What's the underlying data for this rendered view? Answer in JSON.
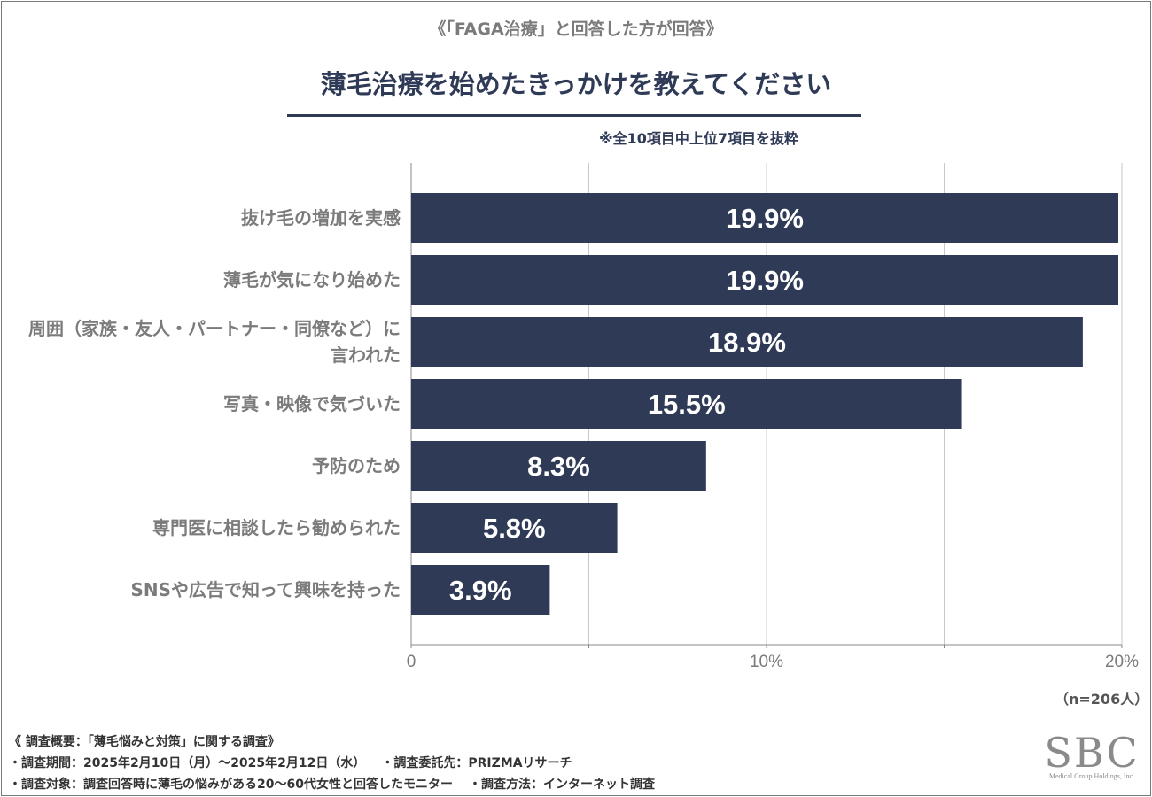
{
  "header": {
    "subtitle": "《「FAGA治療」と回答した方が回答》",
    "title": "薄毛治療を始めたきっかけを教えてください",
    "note": "※全10項目中上位7項目を抜粋"
  },
  "chart_data": {
    "type": "bar",
    "orientation": "horizontal",
    "categories": [
      "抜け毛の増加を実感",
      "薄毛が気になり始めた",
      "周囲（家族・友人・パートナー・同僚など）に言われた",
      "写真・映像で気づいた",
      "予防のため",
      "専門医に相談したら勧められた",
      "SNSや広告で知って興味を持った"
    ],
    "category_lines": [
      [
        "抜け毛の増加を実感"
      ],
      [
        "薄毛が気になり始めた"
      ],
      [
        "周囲（家族・友人・パートナー・同僚など）に",
        "言われた"
      ],
      [
        "写真・映像で気づいた"
      ],
      [
        "予防のため"
      ],
      [
        "専門医に相談したら勧められた"
      ],
      [
        "SNSや広告で知って興味を持った"
      ]
    ],
    "values": [
      19.9,
      19.9,
      18.9,
      15.5,
      8.3,
      5.8,
      3.9
    ],
    "value_labels": [
      "19.9%",
      "19.9%",
      "18.9%",
      "15.5%",
      "8.3%",
      "5.8%",
      "3.9%"
    ],
    "xlim": [
      0,
      20
    ],
    "ticks": [
      0,
      5,
      10,
      15,
      20
    ],
    "tick_labels": [
      "0",
      "",
      "10%",
      "",
      "20%"
    ],
    "bar_color": "#2f3a57",
    "grid_color": "#c8c8c8",
    "grid": true
  },
  "sample_size": "（n=206人）",
  "footer": {
    "survey_overview": "《 調査概要：「薄毛悩みと対策」に関する調査》",
    "period": "・調査期間：2025年2月10日（月）～2025年2月12日（水）",
    "contractor": "・調査委託先：PRIZMAリサーチ",
    "target": "・調査対象：調査回答時に薄毛の悩みがある20～60代女性と回答したモニター",
    "method": "・調査方法：インターネット調査"
  },
  "logo": {
    "main": "SBC",
    "sub": "Medical Group Holdings, Inc."
  }
}
